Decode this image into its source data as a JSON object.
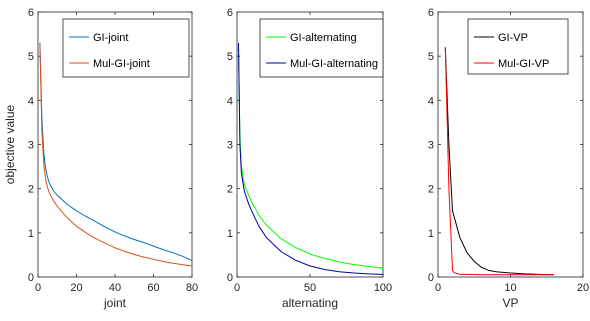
{
  "chart_data": [
    {
      "type": "line",
      "xlabel": "joint",
      "ylabel": "objective value",
      "xlim": [
        0,
        80
      ],
      "ylim": [
        0,
        6
      ],
      "xticks": [
        0,
        20,
        40,
        60,
        80
      ],
      "yticks": [
        0,
        1,
        2,
        3,
        4,
        5,
        6
      ],
      "grid": false,
      "legend": "top-right",
      "series": [
        {
          "name": "GI-joint",
          "color": "#0072bd",
          "x": [
            1,
            2,
            3,
            4,
            5,
            6,
            8,
            10,
            15,
            20,
            25,
            30,
            35,
            40,
            45,
            50,
            55,
            60,
            65,
            70,
            75,
            80
          ],
          "y": [
            5.3,
            3.6,
            2.8,
            2.45,
            2.25,
            2.12,
            1.95,
            1.85,
            1.65,
            1.5,
            1.37,
            1.25,
            1.13,
            1.02,
            0.93,
            0.85,
            0.78,
            0.7,
            0.62,
            0.55,
            0.47,
            0.37
          ]
        },
        {
          "name": "Mul-GI-joint",
          "color": "#d95319",
          "x": [
            1,
            2,
            3,
            4,
            5,
            6,
            8,
            10,
            15,
            20,
            25,
            30,
            35,
            40,
            45,
            50,
            55,
            60,
            65,
            70,
            75,
            80
          ],
          "y": [
            5.25,
            3.3,
            2.55,
            2.2,
            2.02,
            1.9,
            1.73,
            1.6,
            1.35,
            1.15,
            1.0,
            0.87,
            0.76,
            0.66,
            0.58,
            0.51,
            0.45,
            0.4,
            0.35,
            0.31,
            0.28,
            0.25
          ]
        }
      ]
    },
    {
      "type": "line",
      "xlabel": "alternating",
      "ylabel": "",
      "xlim": [
        0,
        100
      ],
      "ylim": [
        0,
        6
      ],
      "xticks": [
        0,
        50,
        100
      ],
      "yticks": [
        0,
        1,
        2,
        3,
        4,
        5,
        6
      ],
      "grid": false,
      "legend": "top-right",
      "series": [
        {
          "name": "GI-alternating",
          "color": "#00ff00",
          "x": [
            1,
            2,
            3,
            5,
            8,
            10,
            15,
            20,
            30,
            40,
            50,
            60,
            70,
            80,
            90,
            100
          ],
          "y": [
            5.25,
            3.2,
            2.5,
            2.1,
            1.85,
            1.7,
            1.4,
            1.18,
            0.87,
            0.67,
            0.52,
            0.42,
            0.34,
            0.28,
            0.24,
            0.2
          ]
        },
        {
          "name": "Mul-GI-alternating",
          "color": "#0000a0",
          "x": [
            1,
            2,
            3,
            5,
            8,
            10,
            15,
            20,
            30,
            40,
            50,
            60,
            70,
            80,
            90,
            100
          ],
          "y": [
            5.3,
            3.0,
            2.35,
            1.95,
            1.65,
            1.5,
            1.15,
            0.9,
            0.58,
            0.38,
            0.25,
            0.17,
            0.12,
            0.09,
            0.07,
            0.06
          ]
        }
      ]
    },
    {
      "type": "line",
      "xlabel": "VP",
      "ylabel": "",
      "xlim": [
        0,
        20
      ],
      "ylim": [
        0,
        6
      ],
      "xticks": [
        0,
        10,
        20
      ],
      "yticks": [
        0,
        1,
        2,
        3,
        4,
        5,
        6
      ],
      "grid": false,
      "legend": "top-right",
      "series": [
        {
          "name": "GI-VP",
          "color": "#000000",
          "x": [
            1,
            1.5,
            2,
            3,
            4,
            5,
            6,
            7,
            8,
            10,
            12,
            14,
            16
          ],
          "y": [
            5.2,
            3.0,
            1.5,
            0.9,
            0.55,
            0.35,
            0.22,
            0.15,
            0.12,
            0.09,
            0.07,
            0.06,
            0.05
          ]
        },
        {
          "name": "Mul-GI-VP",
          "color": "#ff0000",
          "x": [
            1,
            1.5,
            2,
            2.2,
            3,
            4,
            6,
            8,
            10,
            12,
            14,
            16
          ],
          "y": [
            5.2,
            2.0,
            0.15,
            0.1,
            0.06,
            0.06,
            0.05,
            0.05,
            0.05,
            0.05,
            0.05,
            0.05
          ]
        }
      ]
    }
  ]
}
